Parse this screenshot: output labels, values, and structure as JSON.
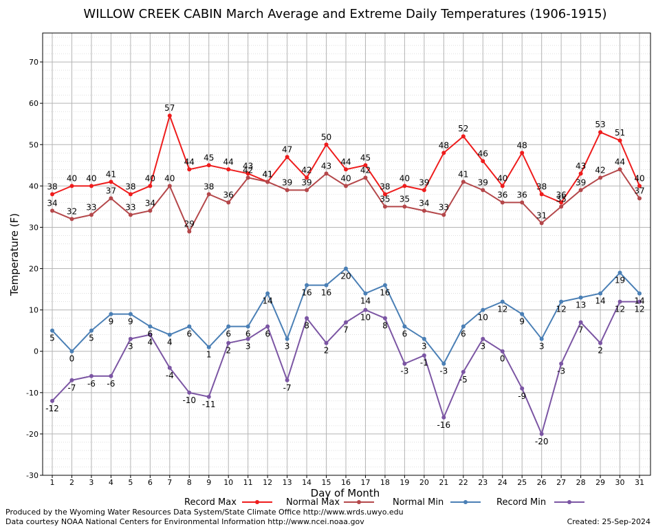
{
  "chart_data": {
    "type": "line",
    "title": "WILLOW CREEK CABIN March Average and Extreme Daily Temperatures (1906-1915)",
    "xlabel": "Day of Month",
    "ylabel": "Temperature (F)",
    "xlim": [
      1,
      31
    ],
    "ylim": [
      -30,
      77
    ],
    "y_ticks": [
      -30,
      -20,
      -10,
      0,
      10,
      20,
      30,
      40,
      50,
      60,
      70
    ],
    "x": [
      1,
      2,
      3,
      4,
      5,
      6,
      7,
      8,
      9,
      10,
      11,
      12,
      13,
      14,
      15,
      16,
      17,
      18,
      19,
      20,
      21,
      22,
      23,
      24,
      25,
      26,
      27,
      28,
      29,
      30,
      31
    ],
    "grid": true,
    "legend_position": "bottom",
    "series": [
      {
        "name": "Record Max",
        "color": "#ee1c1c",
        "values": [
          38,
          40,
          40,
          41,
          38,
          40,
          57,
          44,
          45,
          44,
          43,
          41,
          47,
          42,
          50,
          44,
          45,
          38,
          40,
          39,
          48,
          52,
          46,
          40,
          48,
          38,
          36,
          43,
          53,
          51,
          40
        ]
      },
      {
        "name": "Normal Max",
        "color": "#b4474a",
        "values": [
          34,
          32,
          33,
          37,
          33,
          34,
          40,
          29,
          38,
          36,
          42,
          41,
          39,
          39,
          43,
          40,
          42,
          35,
          35,
          34,
          33,
          41,
          39,
          36,
          36,
          31,
          35,
          39,
          42,
          44,
          37
        ]
      },
      {
        "name": "Normal Min",
        "color": "#4a7fb5",
        "values": [
          5,
          0,
          5,
          9,
          9,
          6,
          4,
          6,
          1,
          6,
          6,
          14,
          3,
          16,
          16,
          20,
          14,
          16,
          6,
          3,
          -3,
          6,
          10,
          12,
          9,
          3,
          12,
          13,
          14,
          19,
          14
        ]
      },
      {
        "name": "Record Min",
        "color": "#7b55a3",
        "values": [
          -12,
          -7,
          -6,
          -6,
          3,
          4,
          -4,
          -10,
          -11,
          2,
          3,
          6,
          -7,
          8,
          2,
          7,
          10,
          8,
          -3,
          -1,
          -16,
          -5,
          3,
          0,
          -9,
          -20,
          -3,
          7,
          2,
          12,
          12
        ]
      }
    ]
  },
  "footer": {
    "produced_by": "Produced by the Wyoming Water Resources Data System/State Climate Office http://www.wrds.uwyo.edu",
    "courtesy": "Data courtesy NOAA National Centers for Environmental Information http://www.ncei.noaa.gov",
    "created": "Created:  25-Sep-2024"
  }
}
